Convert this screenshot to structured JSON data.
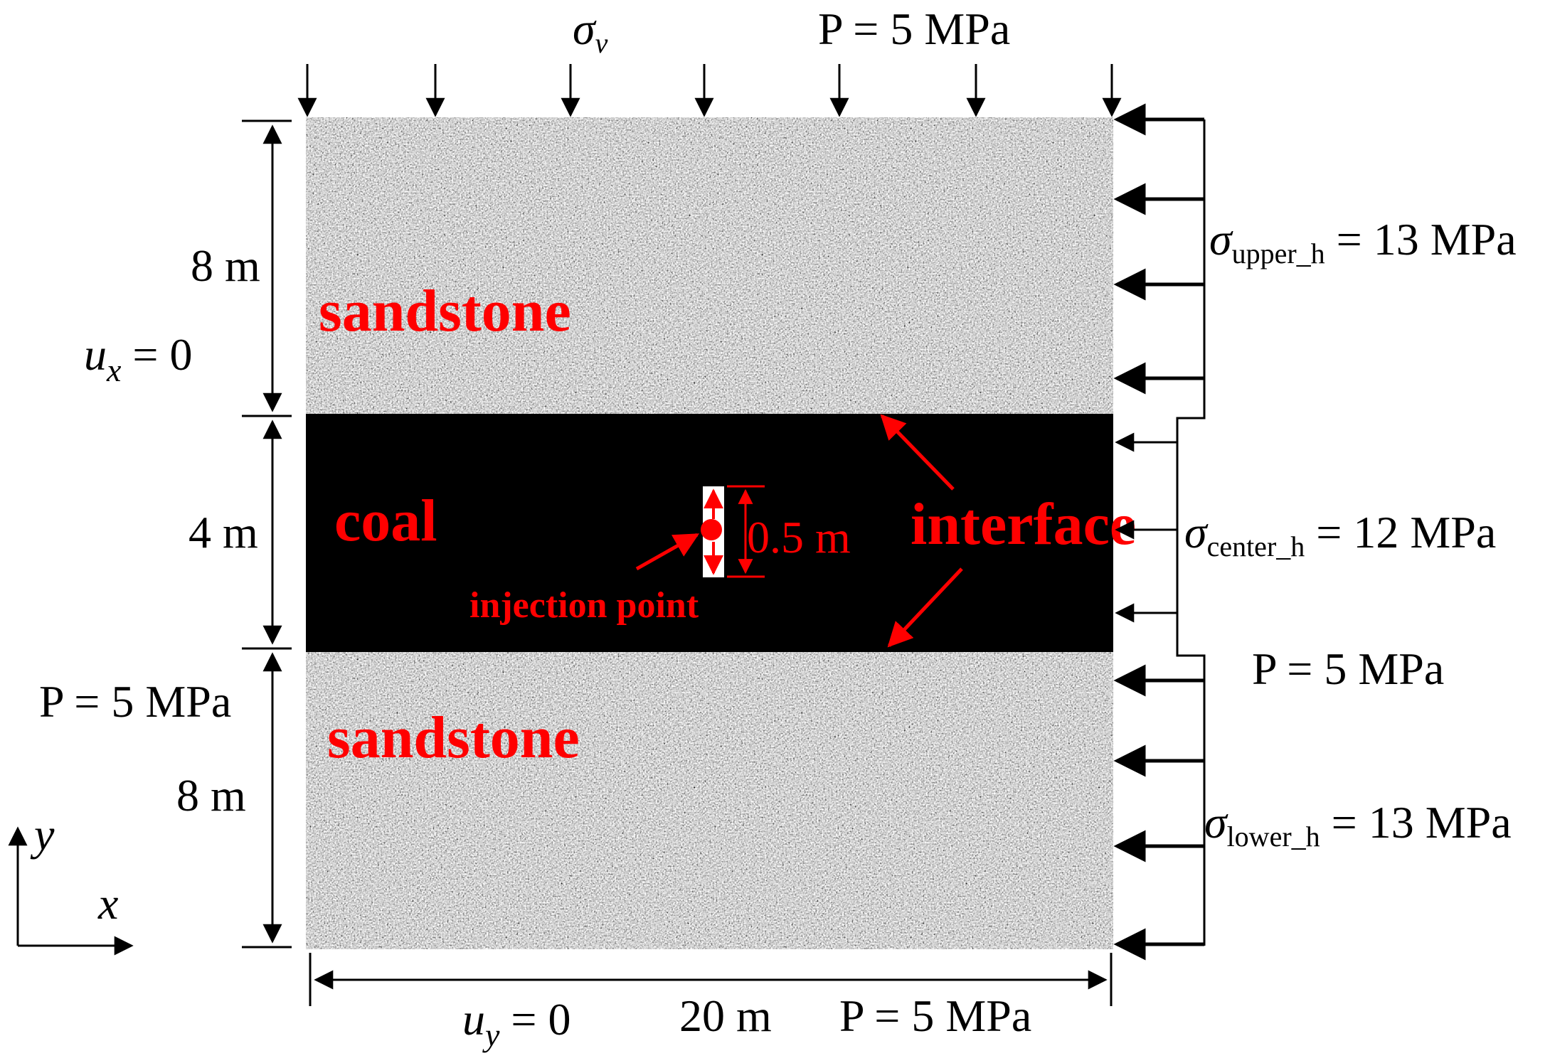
{
  "labels": {
    "sigma_v": "σv",
    "top_pressure": "P = 5 MPa",
    "ux": "ux = 0",
    "height_upper": "8 m",
    "height_coal": "4 m",
    "height_lower": "8 m",
    "left_pressure": "P = 5 MPa",
    "sandstone_upper": "sandstone",
    "coal": "coal",
    "sandstone_lower": "sandstone",
    "injection_point": "injection point",
    "injection_length": "0.5 m",
    "interface": "interface",
    "sigma_upper": "σupper_h = 13 MPa",
    "sigma_center": "σcenter_h = 12 MPa",
    "right_pressure": "P = 5 MPa",
    "sigma_lower": "σlower_h = 13 MPa",
    "uy": "uy = 0",
    "width": "20 m",
    "bottom_pressure": "P = 5 MPa",
    "axis_y": "y",
    "axis_x": "x"
  },
  "colors": {
    "coal": "#000000",
    "sandstone_base": "#a8a8a8",
    "annotation_red": "#ff0000"
  }
}
